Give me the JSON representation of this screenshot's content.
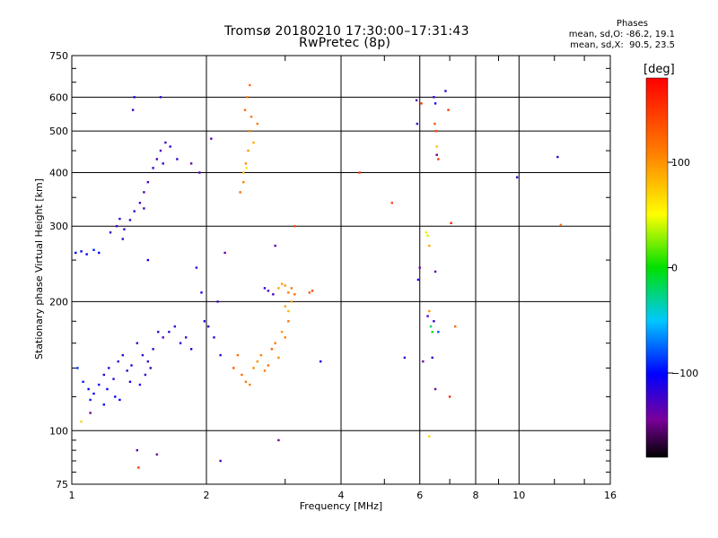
{
  "chart_data": {
    "type": "scatter",
    "title": "Tromsø 20180210 17:30:00–17:31:43",
    "subtitle": "RwPretec (8p)",
    "xlabel": "Frequency [MHz]",
    "ylabel": "Stationary phase Virtual Height [km]",
    "x_scale": "log",
    "y_scale": "log",
    "xlim": [
      1,
      16
    ],
    "ylim": [
      75,
      750
    ],
    "x_ticks": [
      "1",
      "2",
      "4",
      "6",
      "8",
      "10",
      "16"
    ],
    "y_ticks": [
      "75",
      "100",
      "200",
      "300",
      "400",
      "500",
      "600",
      "750"
    ],
    "grid": true,
    "phases_box": {
      "title": "Phases",
      "line_o": "mean, sd,O: -86.2, 19.1",
      "line_x": "mean, sd,X:  90.5, 23.5"
    },
    "colorbar": {
      "label": "[deg]",
      "ticks": [
        "100",
        "0",
        "−100"
      ],
      "tick_values": [
        100,
        0,
        -100
      ],
      "range": [
        -180,
        180
      ]
    },
    "series": [
      {
        "points": [
          [
            1.02,
            260,
            -100
          ],
          [
            1.05,
            262,
            -105
          ],
          [
            1.08,
            258,
            -100
          ],
          [
            1.12,
            264,
            -95
          ],
          [
            1.15,
            260,
            -100
          ],
          [
            1.22,
            290,
            -120
          ],
          [
            1.26,
            300,
            -125
          ],
          [
            1.28,
            312,
            -120
          ],
          [
            1.31,
            295,
            -115
          ],
          [
            1.35,
            310,
            -118
          ],
          [
            1.38,
            325,
            -120
          ],
          [
            1.42,
            340,
            -125
          ],
          [
            1.45,
            360,
            -130
          ],
          [
            1.48,
            380,
            -125
          ],
          [
            1.52,
            410,
            -120
          ],
          [
            1.55,
            430,
            -125
          ],
          [
            1.58,
            450,
            -130
          ],
          [
            1.62,
            470,
            -125
          ],
          [
            1.38,
            600,
            -120
          ],
          [
            1.37,
            560,
            -125
          ],
          [
            1.58,
            600,
            -120
          ],
          [
            1.48,
            250,
            -110
          ],
          [
            1.03,
            140,
            -90
          ],
          [
            1.06,
            130,
            -95
          ],
          [
            1.09,
            125,
            -100
          ],
          [
            1.12,
            122,
            -105
          ],
          [
            1.15,
            128,
            -110
          ],
          [
            1.18,
            135,
            -115
          ],
          [
            1.21,
            140,
            -118
          ],
          [
            1.24,
            132,
            -120
          ],
          [
            1.27,
            145,
            -122
          ],
          [
            1.3,
            150,
            -120
          ],
          [
            1.33,
            138,
            -118
          ],
          [
            1.36,
            142,
            -120
          ],
          [
            1.4,
            160,
            -125
          ],
          [
            1.44,
            150,
            -120
          ],
          [
            1.48,
            145,
            -122
          ],
          [
            1.52,
            155,
            -118
          ],
          [
            1.56,
            170,
            -120
          ],
          [
            1.6,
            165,
            -125
          ],
          [
            1.65,
            170,
            -120
          ],
          [
            1.7,
            175,
            -118
          ],
          [
            1.75,
            160,
            -120
          ],
          [
            1.8,
            165,
            -125
          ],
          [
            1.85,
            155,
            -110
          ],
          [
            1.9,
            240,
            -120
          ],
          [
            1.95,
            210,
            -115
          ],
          [
            1.98,
            180,
            -120
          ],
          [
            2.02,
            175,
            -118
          ],
          [
            2.08,
            165,
            -120
          ],
          [
            2.12,
            200,
            -125
          ],
          [
            2.15,
            150,
            -120
          ],
          [
            1.05,
            105,
            70
          ],
          [
            1.1,
            110,
            -150
          ],
          [
            1.4,
            90,
            -130
          ],
          [
            1.41,
            82,
            150
          ],
          [
            1.55,
            88,
            -140
          ],
          [
            1.85,
            420,
            -140
          ],
          [
            1.93,
            400,
            -130
          ],
          [
            2.05,
            480,
            -135
          ],
          [
            2.2,
            260,
            -140
          ],
          [
            2.15,
            85,
            -130
          ],
          [
            2.38,
            360,
            120
          ],
          [
            2.42,
            380,
            110
          ],
          [
            2.45,
            420,
            105
          ],
          [
            2.48,
            450,
            100
          ],
          [
            2.5,
            500,
            110
          ],
          [
            2.52,
            540,
            115
          ],
          [
            2.44,
            560,
            120
          ],
          [
            2.47,
            600,
            110
          ],
          [
            2.5,
            640,
            120
          ],
          [
            2.42,
            400,
            80
          ],
          [
            2.46,
            410,
            60
          ],
          [
            2.55,
            470,
            90
          ],
          [
            2.6,
            520,
            110
          ],
          [
            2.4,
            135,
            120
          ],
          [
            2.45,
            130,
            115
          ],
          [
            2.5,
            128,
            110
          ],
          [
            2.55,
            140,
            105
          ],
          [
            2.6,
            145,
            100
          ],
          [
            2.65,
            150,
            110
          ],
          [
            2.7,
            138,
            115
          ],
          [
            2.75,
            142,
            120
          ],
          [
            2.8,
            155,
            125
          ],
          [
            2.85,
            160,
            110
          ],
          [
            2.9,
            148,
            105
          ],
          [
            2.95,
            170,
            100
          ],
          [
            3.0,
            165,
            110
          ],
          [
            3.05,
            180,
            115
          ],
          [
            2.3,
            140,
            130
          ],
          [
            2.35,
            150,
            120
          ],
          [
            2.7,
            215,
            -120
          ],
          [
            2.75,
            212,
            -130
          ],
          [
            2.82,
            208,
            -125
          ],
          [
            2.9,
            215,
            90
          ],
          [
            2.95,
            220,
            95
          ],
          [
            3.0,
            218,
            100
          ],
          [
            3.05,
            210,
            110
          ],
          [
            3.1,
            215,
            115
          ],
          [
            3.15,
            208,
            120
          ],
          [
            3.4,
            210,
            130
          ],
          [
            3.45,
            212,
            140
          ],
          [
            3.0,
            195,
            90
          ],
          [
            3.05,
            190,
            85
          ],
          [
            3.1,
            200,
            95
          ],
          [
            2.85,
            270,
            -130
          ],
          [
            3.15,
            300,
            140
          ],
          [
            2.9,
            95,
            -140
          ],
          [
            3.6,
            145,
            -110
          ],
          [
            4.4,
            400,
            150
          ],
          [
            5.2,
            340,
            140
          ],
          [
            5.55,
            148,
            -120
          ],
          [
            5.9,
            590,
            -130
          ],
          [
            5.92,
            520,
            -120
          ],
          [
            5.95,
            225,
            -110
          ],
          [
            6.0,
            240,
            -140
          ],
          [
            6.05,
            580,
            150
          ],
          [
            6.1,
            145,
            -140
          ],
          [
            6.2,
            290,
            60
          ],
          [
            6.25,
            285,
            40
          ],
          [
            6.3,
            270,
            90
          ],
          [
            6.25,
            185,
            -130
          ],
          [
            6.3,
            190,
            100
          ],
          [
            6.35,
            175,
            -20
          ],
          [
            6.4,
            170,
            0
          ],
          [
            6.45,
            600,
            -120
          ],
          [
            6.5,
            580,
            -100
          ],
          [
            6.48,
            520,
            130
          ],
          [
            6.52,
            500,
            140
          ],
          [
            6.55,
            460,
            80
          ],
          [
            6.55,
            440,
            -150
          ],
          [
            6.6,
            430,
            150
          ],
          [
            6.5,
            235,
            -130
          ],
          [
            6.45,
            180,
            -120
          ],
          [
            6.4,
            148,
            -120
          ],
          [
            6.5,
            125,
            -140
          ],
          [
            6.6,
            170,
            -80
          ],
          [
            6.85,
            620,
            -120
          ],
          [
            6.95,
            560,
            150
          ],
          [
            7.0,
            120,
            160
          ],
          [
            7.05,
            305,
            160
          ],
          [
            7.2,
            175,
            120
          ],
          [
            6.3,
            97,
            70
          ],
          [
            9.9,
            390,
            -120
          ],
          [
            12.2,
            435,
            -120
          ],
          [
            12.4,
            302,
            120
          ],
          [
            1.72,
            430,
            -120
          ],
          [
            1.6,
            420,
            -122
          ],
          [
            1.66,
            460,
            -118
          ],
          [
            1.45,
            330,
            -125
          ],
          [
            1.3,
            280,
            -120
          ],
          [
            1.1,
            118,
            -95
          ],
          [
            1.2,
            125,
            -100
          ],
          [
            1.25,
            120,
            -105
          ],
          [
            1.35,
            130,
            -110
          ],
          [
            1.42,
            128,
            -115
          ],
          [
            1.46,
            135,
            -120
          ],
          [
            1.5,
            140,
            -118
          ],
          [
            1.18,
            115,
            -100
          ],
          [
            1.28,
            118,
            -105
          ]
        ]
      }
    ]
  }
}
